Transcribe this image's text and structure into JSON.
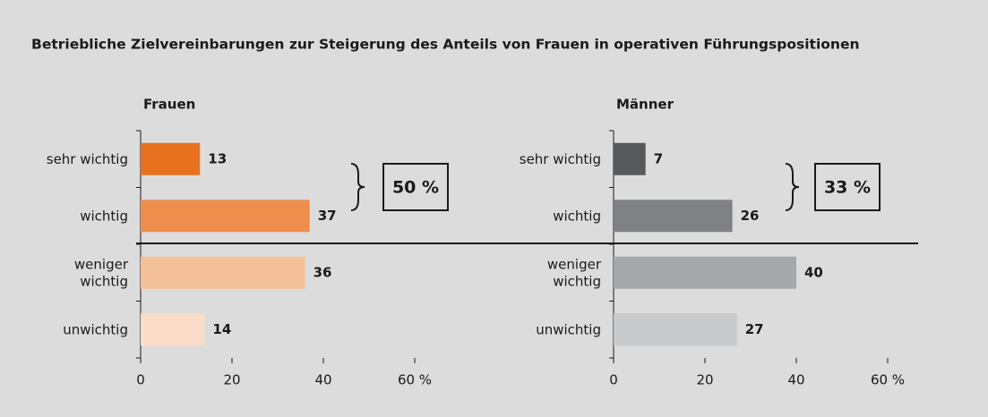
{
  "title": "Betriebliche Zielvereinbarungen zur Steigerung des Anteils von Frauen in operativen Führungspositionen",
  "chart_data": [
    {
      "type": "bar",
      "orientation": "horizontal",
      "title": "Frauen",
      "categories": [
        "sehr wichtig",
        "wichtig",
        "weniger\nwichtig",
        "unwichtig"
      ],
      "values": [
        13,
        37,
        36,
        14
      ],
      "colors": [
        "#e8711f",
        "#ed8e4c",
        "#f4c09a",
        "#fadcc8"
      ],
      "xlim": [
        0,
        60
      ],
      "xticks": [
        0,
        20,
        40,
        {
          "value": 60,
          "label": "60 %"
        }
      ],
      "annotation": "50 %"
    },
    {
      "type": "bar",
      "orientation": "horizontal",
      "title": "Männer",
      "categories": [
        "sehr wichtig",
        "wichtig",
        "weniger\nwichtig",
        "unwichtig"
      ],
      "values": [
        7,
        26,
        40,
        27
      ],
      "colors": [
        "#58595b",
        "#808184",
        "#a7a8aa",
        "#c8c9ca"
      ],
      "xlim": [
        0,
        60
      ],
      "xticks": [
        0,
        20,
        40,
        {
          "value": 60,
          "label": "60 %"
        }
      ],
      "annotation": "33 %"
    }
  ]
}
